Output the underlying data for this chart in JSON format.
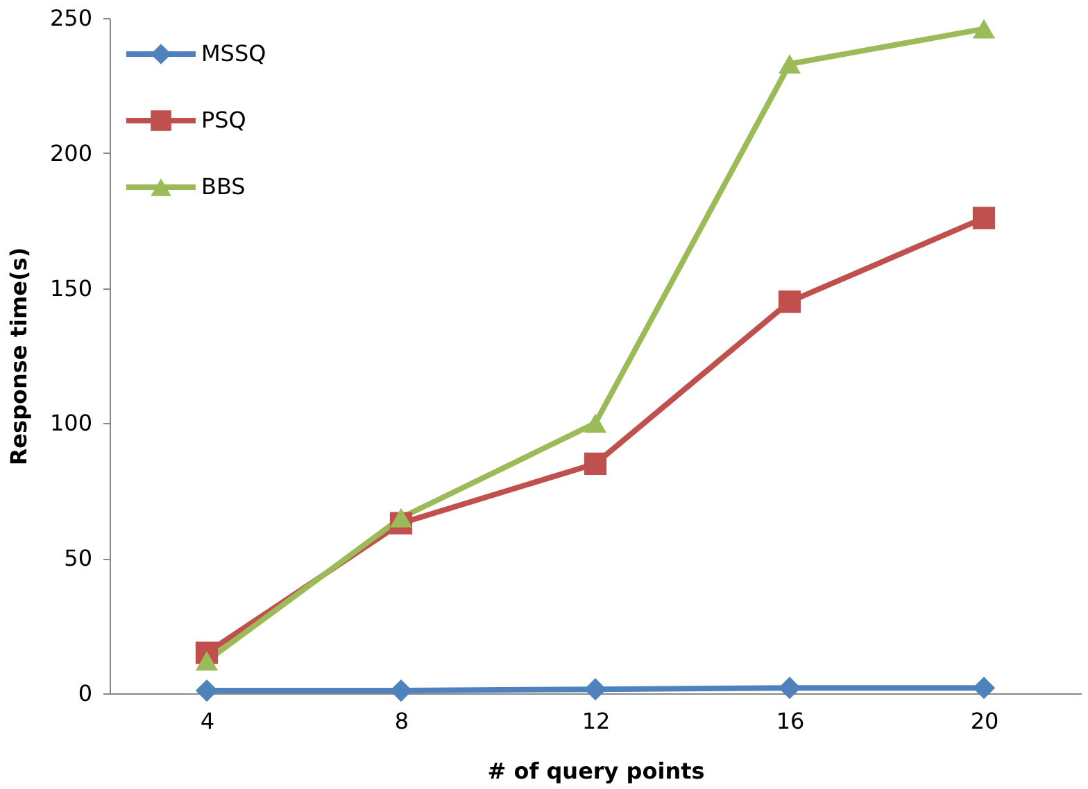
{
  "chart_data": {
    "type": "line",
    "xlabel": "# of query points",
    "ylabel": "Response  time(s)",
    "categories": [
      "4",
      "8",
      "12",
      "16",
      "20"
    ],
    "series": [
      {
        "name": "MSSQ",
        "color": "#4f81bd",
        "marker": "diamond",
        "values": [
          1,
          1,
          1.5,
          2,
          2
        ]
      },
      {
        "name": "PSQ",
        "color": "#c0504d",
        "marker": "square",
        "values": [
          15,
          63,
          85,
          145,
          176
        ]
      },
      {
        "name": "BBS",
        "color": "#9bbb59",
        "marker": "triangle",
        "values": [
          12,
          65,
          100,
          233,
          246
        ]
      }
    ],
    "ylim": [
      0,
      250
    ],
    "yticks": [
      0,
      50,
      100,
      150,
      200,
      250
    ],
    "grid": false,
    "legend": "top left"
  }
}
